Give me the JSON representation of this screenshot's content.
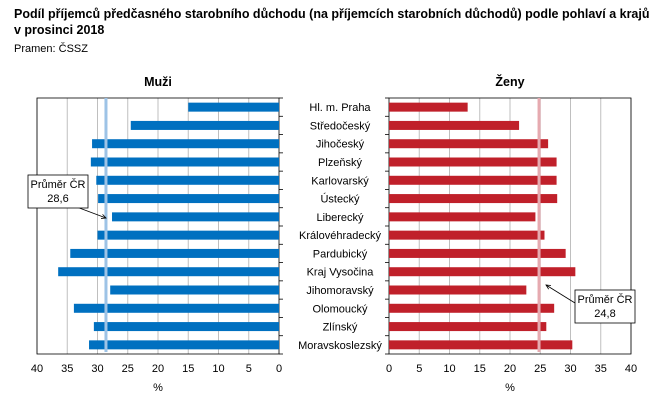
{
  "title": "Podíl příjemců předčasného starobního důchodu (na příjemcích starobních důchodů) podle pohlaví a krajů v prosinci 2018",
  "source": "Pramen: ČSSZ",
  "chart_data": [
    {
      "type": "bar",
      "orientation": "horizontal",
      "title": "Muži",
      "xlabel": "%",
      "xlim": [
        0,
        40
      ],
      "x_reversed": true,
      "ticks": [
        "40",
        "35",
        "30",
        "25",
        "20",
        "15",
        "10",
        "5",
        "0"
      ],
      "grid": true,
      "color": "#0070C0",
      "avg_color": "#9DC3E6",
      "average": 28.6,
      "average_label": [
        "Průměr ČR",
        "28,6"
      ],
      "categories": [
        "Hl. m. Praha",
        "Středočeský",
        "Jihočeský",
        "Plzeňský",
        "Karlovarský",
        "Ústecký",
        "Liberecký",
        "Královéhradecký",
        "Pardubický",
        "Kraj Vysočina",
        "Jihomoravský",
        "Olomoucký",
        "Zlínský",
        "Moravskoslezský"
      ],
      "values": [
        15.0,
        24.5,
        30.9,
        31.1,
        30.2,
        29.9,
        27.6,
        30.0,
        34.5,
        36.5,
        27.9,
        33.9,
        30.6,
        31.4
      ]
    },
    {
      "type": "bar",
      "orientation": "horizontal",
      "title": "Ženy",
      "xlabel": "%",
      "xlim": [
        0,
        40
      ],
      "ticks": [
        "0",
        "5",
        "10",
        "15",
        "20",
        "25",
        "30",
        "35",
        "40"
      ],
      "grid": true,
      "color": "#C0202A",
      "avg_color": "#E6AAB0",
      "average": 24.8,
      "average_label": [
        "Průměr ČR",
        "24,8"
      ],
      "categories": [
        "Hl. m. Praha",
        "Středočeský",
        "Jihočeský",
        "Plzeňský",
        "Karlovarský",
        "Ústecký",
        "Liberecký",
        "Královéhradecký",
        "Pardubický",
        "Kraj Vysočina",
        "Jihomoravský",
        "Olomoucký",
        "Zlínský",
        "Moravskoslezský"
      ],
      "values": [
        13.0,
        21.5,
        26.3,
        27.7,
        27.7,
        27.8,
        24.2,
        25.7,
        29.2,
        30.8,
        22.7,
        27.3,
        26.0,
        30.3
      ]
    }
  ]
}
